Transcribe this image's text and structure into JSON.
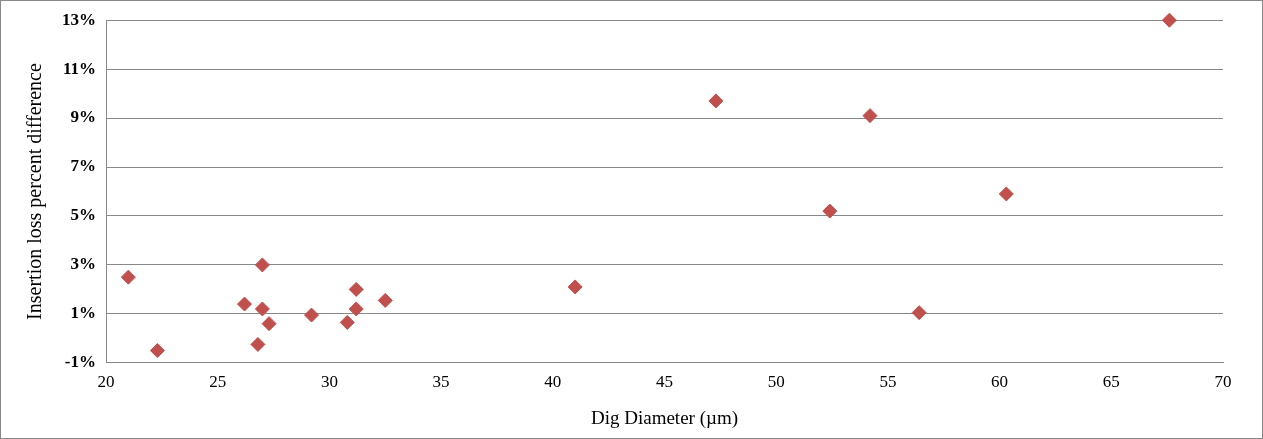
{
  "chart_data": {
    "type": "scatter",
    "xlabel": "Dig Diameter (µm)",
    "ylabel": "Insertion loss percent difference",
    "marker": "diamond",
    "grid": "y",
    "legend": false,
    "xlim": [
      20,
      70
    ],
    "xticks": [
      20,
      25,
      30,
      35,
      40,
      45,
      50,
      55,
      60,
      65,
      70
    ],
    "ylim": [
      -1,
      13
    ],
    "yticks": [
      {
        "value": -1,
        "label": "-1%"
      },
      {
        "value": 1,
        "label": "1%"
      },
      {
        "value": 3,
        "label": "3%"
      },
      {
        "value": 5,
        "label": "5%"
      },
      {
        "value": 7,
        "label": "7%"
      },
      {
        "value": 9,
        "label": "9%"
      },
      {
        "value": 11,
        "label": "11%"
      },
      {
        "value": 13,
        "label": "13%"
      }
    ],
    "series": [
      {
        "color": "#c0504d",
        "x": [
          21.0,
          22.3,
          26.2,
          27.0,
          27.0,
          26.8,
          27.3,
          29.2,
          30.8,
          31.2,
          31.2,
          32.5,
          41.0,
          47.3,
          54.2,
          52.4,
          56.4,
          60.3,
          67.6
        ],
        "values": [
          2.5,
          -0.5,
          1.4,
          3.0,
          1.2,
          -0.25,
          0.6,
          0.95,
          0.65,
          2.0,
          1.2,
          1.55,
          2.1,
          9.7,
          9.1,
          5.2,
          1.05,
          5.9,
          13.0
        ]
      }
    ]
  }
}
